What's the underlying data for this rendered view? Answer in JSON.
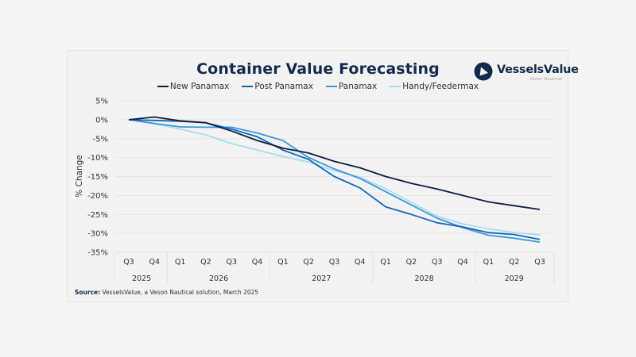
{
  "chart_data": {
    "type": "line",
    "title": "Container Value Forecasting",
    "xlabel": "",
    "ylabel": "% Change",
    "ylim": [
      -35,
      5
    ],
    "yticks": [
      5,
      0,
      -5,
      -10,
      -15,
      -20,
      -25,
      -30,
      -35
    ],
    "ytick_labels": [
      "5%",
      "0%",
      "-5%",
      "-10%",
      "-15%",
      "-20%",
      "-25%",
      "-30%",
      "-35%"
    ],
    "grid": true,
    "legend_position": "top-center",
    "categories": [
      "Q3 2025",
      "Q4 2025",
      "Q1 2026",
      "Q2 2026",
      "Q3 2026",
      "Q4 2026",
      "Q1 2027",
      "Q2 2027",
      "Q3 2027",
      "Q4 2027",
      "Q1 2028",
      "Q2 2028",
      "Q3 2028",
      "Q4 2028",
      "Q1 2029",
      "Q2 2029",
      "Q3 2029"
    ],
    "quarter_labels": [
      "Q3",
      "Q4",
      "Q1",
      "Q2",
      "Q3",
      "Q4",
      "Q1",
      "Q2",
      "Q3",
      "Q4",
      "Q1",
      "Q2",
      "Q3",
      "Q4",
      "Q1",
      "Q2",
      "Q3"
    ],
    "year_groups": [
      {
        "label": "2025",
        "count": 2
      },
      {
        "label": "2026",
        "count": 4
      },
      {
        "label": "2027",
        "count": 4
      },
      {
        "label": "2028",
        "count": 4
      },
      {
        "label": "2029",
        "count": 3
      }
    ],
    "series": [
      {
        "name": "New Panamax",
        "color": "#0f1f40",
        "values": [
          0,
          0.7,
          -0.3,
          -0.8,
          -3,
          -5.5,
          -7.5,
          -8.8,
          -11,
          -12.7,
          -15,
          -16.8,
          -18.3,
          -20,
          -21.7,
          -22.7,
          -23.7
        ]
      },
      {
        "name": "Post Panamax",
        "color": "#1565c0",
        "values": [
          0,
          -0.2,
          -0.4,
          -0.8,
          -2.5,
          -4.5,
          -8,
          -10.5,
          -15,
          -18,
          -23,
          -25,
          -27.2,
          -28.3,
          -29.8,
          -30.3,
          -31.6
        ]
      },
      {
        "name": "Panamax",
        "color": "#3a9ad9",
        "values": [
          0,
          -1,
          -1.9,
          -2,
          -2,
          -3.5,
          -5.5,
          -10,
          -13,
          -15.5,
          -19,
          -22.5,
          -26,
          -28.5,
          -30.5,
          -31.3,
          -32.3
        ]
      },
      {
        "name": "Handy/Feedermax",
        "color": "#a9dcf3",
        "values": [
          0,
          -1,
          -2.5,
          -4,
          -6.3,
          -8,
          -9.7,
          -11.2,
          -13.5,
          -15.2,
          -18.2,
          -21.8,
          -25.5,
          -27.5,
          -28.8,
          -29.8,
          -30.4
        ]
      }
    ]
  },
  "logo": {
    "name": "VesselsValue",
    "sub": "Veson Nautical"
  },
  "source": {
    "label": "Source:",
    "text": " VesselsValue, a Veson Nautical solution, March 2025"
  }
}
